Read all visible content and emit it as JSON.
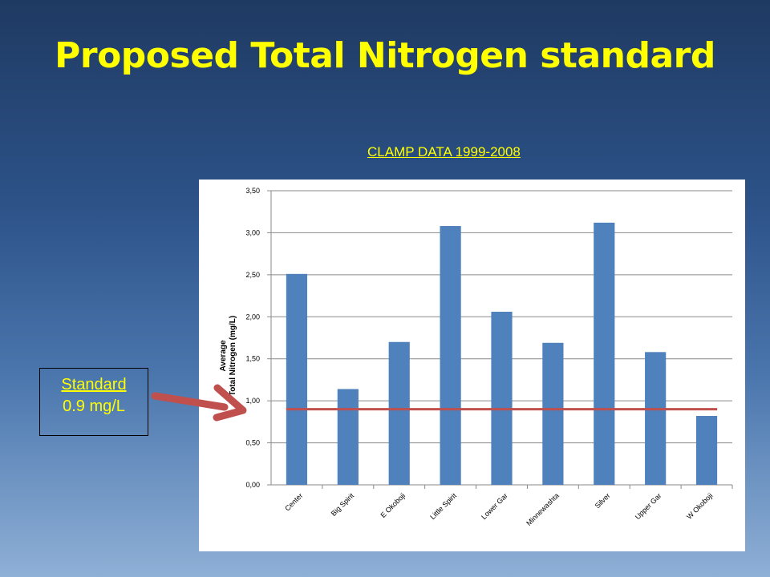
{
  "slide": {
    "title": "Proposed Total Nitrogen standard",
    "subtitle": "CLAMP DATA 1999-2008"
  },
  "standard_callout": {
    "label": "Standard",
    "value": "0.9 mg/L"
  },
  "chart_data": {
    "type": "bar",
    "title": "",
    "categories": [
      "Center",
      "Big Spirit",
      "E Okoboji",
      "Little Spirit",
      "Lower Gar",
      "Minnewashta",
      "Silver",
      "Upper Gar",
      "W Okoboji"
    ],
    "values": [
      2.51,
      1.14,
      1.7,
      3.08,
      2.06,
      1.69,
      3.12,
      1.58,
      0.82
    ],
    "ylabel_line1": "Average",
    "ylabel_line2": "Total Nitrogen (mg/L)",
    "xlabel": "",
    "ylim": [
      0,
      3.5
    ],
    "yticks": [
      "0,00",
      "0,50",
      "1,00",
      "1,50",
      "2,00",
      "2,50",
      "3,00",
      "3,50"
    ],
    "reference_line": 0.9,
    "grid": true,
    "bar_color": "#4f81bd",
    "line_color": "#c0504d"
  },
  "colors": {
    "title": "#ffff00",
    "arrow": "#c0504d"
  }
}
